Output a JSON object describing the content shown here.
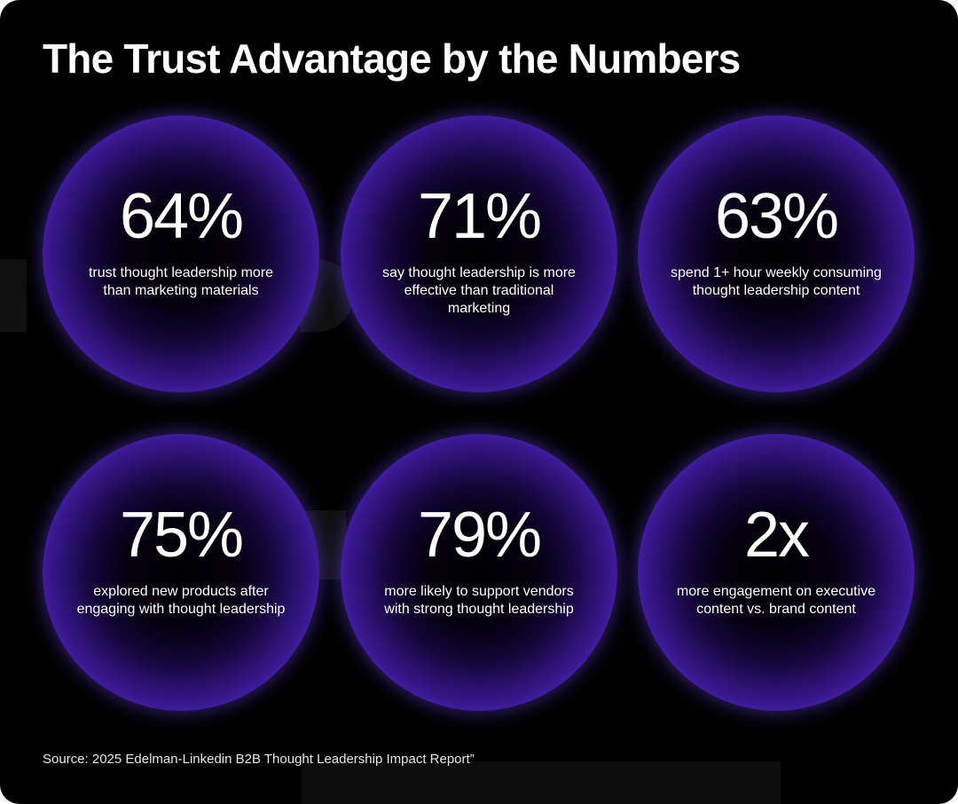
{
  "title": "The Trust Advantage by the Numbers",
  "stats": [
    {
      "value": "64%",
      "description": "trust thought leadership more than marketing materials"
    },
    {
      "value": "71%",
      "description": "say thought leadership is more effective than traditional marketing"
    },
    {
      "value": "63%",
      "description": "spend 1+ hour weekly consuming thought leadership content"
    },
    {
      "value": "75%",
      "description": "explored new products after engaging with thought leadership"
    },
    {
      "value": "79%",
      "description": "more likely to support vendors with strong thought leadership"
    },
    {
      "value": "2x",
      "description": "more engagement on executive content vs. brand content"
    }
  ],
  "source": "Source: 2025 Edelman-Linkedin B2B Thought Leadership Impact Report”",
  "colors": {
    "background": "#000000",
    "accent": "#7e50ff",
    "text": "#ffffff"
  }
}
